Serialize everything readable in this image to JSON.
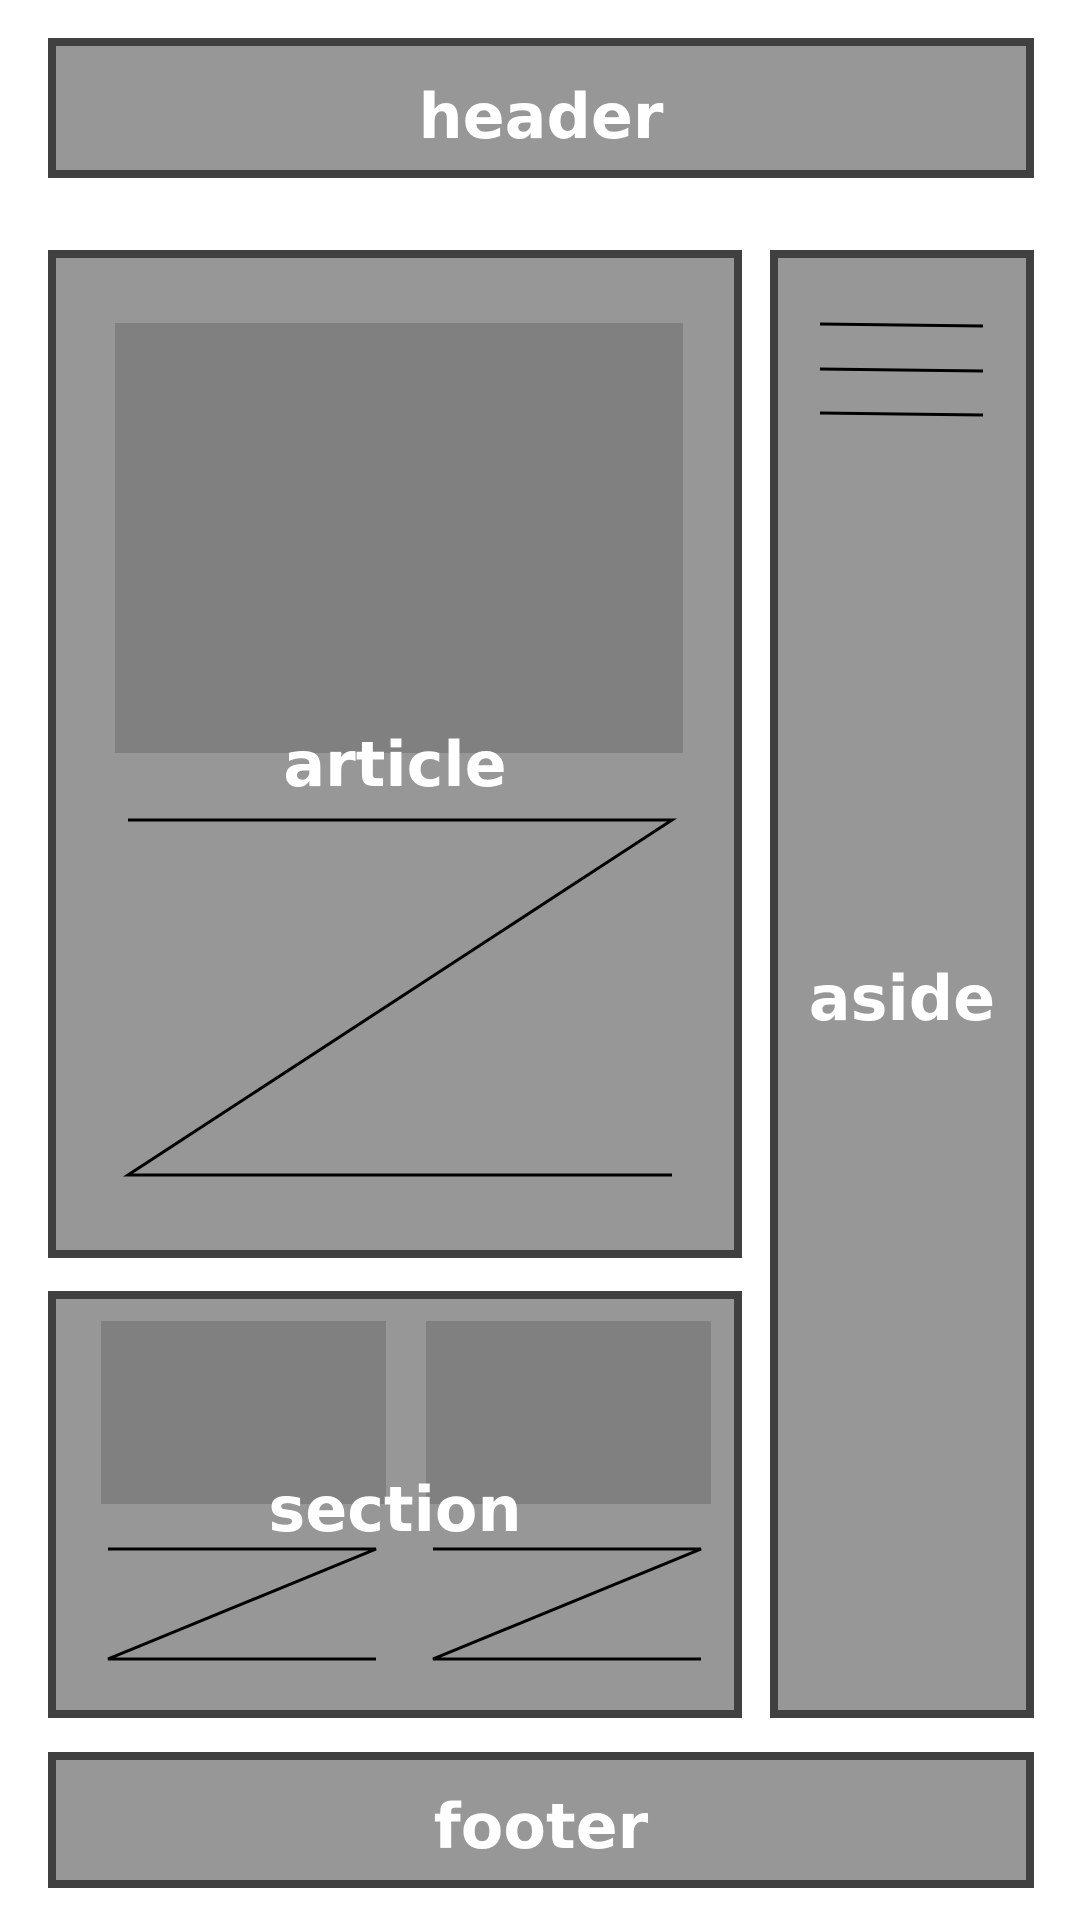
{
  "header": {
    "label": "header"
  },
  "article": {
    "label": "article"
  },
  "section": {
    "label": "section"
  },
  "aside": {
    "label": "aside"
  },
  "footer": {
    "label": "footer"
  },
  "colors": {
    "background": "#ffffff",
    "box_fill": "#979797",
    "box_border": "#404040",
    "image_placeholder": "#808080",
    "label_text": "#ffffff",
    "text_lines": "#000000"
  }
}
